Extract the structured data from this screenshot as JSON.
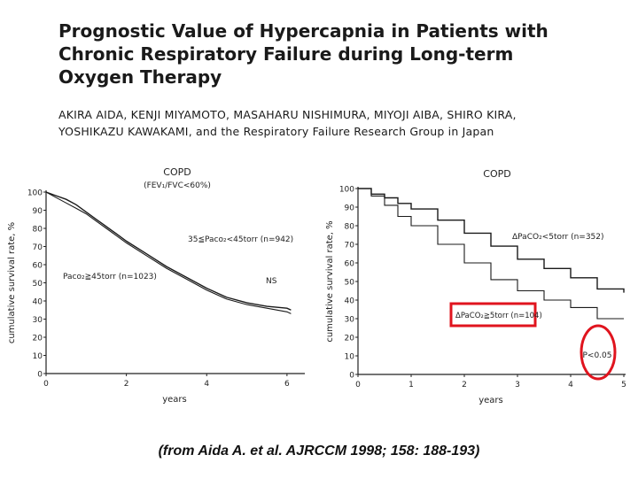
{
  "header": {
    "title_lines": [
      "Prognostic Value of Hypercapnia in Patients with",
      "Chronic Respiratory Failure during Long-term",
      "Oxygen Therapy"
    ],
    "author_lines": [
      "AKIRA AIDA, KENJI MIYAMOTO, MASAHARU NISHIMURA, MIYOJI AIBA, SHIRO KIRA,",
      "YOSHIKAZU KAWAKAMI, and the Respiratory Failure Research Group in Japan"
    ]
  },
  "citation": "(from Aida A. et al. AJRCCM 1998; 158: 188-193)",
  "chart_data": [
    {
      "type": "line",
      "title": "COPD",
      "subtitle": "(FEV₁/FVC<60%)",
      "xlabel": "years",
      "ylabel": "cumulative survival rate, %",
      "xlim": [
        0,
        6.4
      ],
      "ylim": [
        0,
        100
      ],
      "xticks": [
        0,
        2,
        4,
        6
      ],
      "yticks": [
        0,
        10,
        20,
        30,
        40,
        50,
        60,
        70,
        80,
        90,
        100
      ],
      "grid": false,
      "series": [
        {
          "name": "35≦Paco₂<45torr (n=942)",
          "x": [
            0,
            0.25,
            0.5,
            0.75,
            1,
            1.25,
            1.5,
            1.75,
            2,
            2.5,
            3,
            3.5,
            4,
            4.5,
            5,
            5.5,
            6,
            6.1
          ],
          "y": [
            100,
            98,
            96,
            93,
            89,
            85,
            81,
            77,
            73,
            66,
            59,
            53,
            47,
            42,
            39,
            37,
            36,
            35
          ]
        },
        {
          "name": "Paco₂≧45torr (n=1023)",
          "x": [
            0,
            0.25,
            0.5,
            0.75,
            1,
            1.25,
            1.5,
            1.75,
            2,
            2.5,
            3,
            3.5,
            4,
            4.5,
            5,
            5.5,
            6,
            6.1
          ],
          "y": [
            100,
            97,
            94,
            91,
            88,
            84,
            80,
            76,
            72,
            65,
            58,
            52,
            46,
            41,
            38,
            36,
            34,
            33
          ]
        }
      ],
      "annotations": [
        "NS"
      ]
    },
    {
      "type": "line",
      "title": "COPD",
      "xlabel": "years",
      "ylabel": "cumulative survival rate, %",
      "xlim": [
        0,
        5
      ],
      "ylim": [
        0,
        100
      ],
      "xticks": [
        0,
        1,
        2,
        3,
        4,
        5
      ],
      "yticks": [
        0,
        10,
        20,
        30,
        40,
        50,
        60,
        70,
        80,
        90,
        100
      ],
      "grid": false,
      "series": [
        {
          "name": "ΔPaCO₂<5torr (n=352)",
          "x": [
            0,
            0.25,
            0.5,
            0.75,
            1,
            1.5,
            2,
            2.5,
            3,
            3.5,
            4,
            4.5,
            5
          ],
          "y": [
            100,
            97,
            95,
            92,
            89,
            83,
            76,
            69,
            62,
            57,
            52,
            46,
            44
          ]
        },
        {
          "name": "ΔPaCO₂≧5torr (n=104)",
          "x": [
            0,
            0.25,
            0.5,
            0.75,
            1,
            1.5,
            2,
            2.5,
            3,
            3.5,
            4,
            4.5,
            5
          ],
          "y": [
            100,
            96,
            91,
            85,
            80,
            70,
            60,
            51,
            45,
            40,
            36,
            30,
            30
          ]
        }
      ],
      "annotations": [
        "P<0.05"
      ],
      "highlight_color": "#e0141e"
    }
  ]
}
